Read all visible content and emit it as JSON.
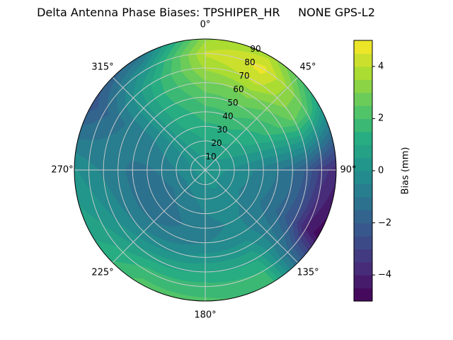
{
  "chart_data": {
    "type": "heatmap",
    "projection": "polar",
    "title": "Delta Antenna Phase Biases: TPSHIPER_HR     NONE GPS-L2",
    "colorbar_label": "Bias (mm)",
    "colormap": "viridis",
    "colormap_stops": [
      "#440154",
      "#472c7a",
      "#3b518b",
      "#2c718e",
      "#21908d",
      "#27ad81",
      "#5cc863",
      "#aadc32",
      "#fde725"
    ],
    "value_range": [
      -5,
      5
    ],
    "band_step": 0.5,
    "angle_convention": "azimuth degrees, 0 at top, increasing clockwise",
    "azimuths": [
      0,
      30,
      60,
      90,
      120,
      150,
      180,
      210,
      240,
      270,
      300,
      330
    ],
    "radii": [
      0,
      10,
      20,
      30,
      40,
      50,
      60,
      70,
      80,
      90
    ],
    "values": [
      [
        0.3,
        0.6,
        1.0,
        1.4,
        1.8,
        2.3,
        2.9,
        3.6,
        4.1,
        3.4
      ],
      [
        0.3,
        0.6,
        1.0,
        1.4,
        1.9,
        2.5,
        3.2,
        4.2,
        4.7,
        3.8
      ],
      [
        0.3,
        0.4,
        0.6,
        0.9,
        1.2,
        1.6,
        2.1,
        2.6,
        2.2,
        0.8
      ],
      [
        0.3,
        0.1,
        -0.1,
        -0.4,
        -0.7,
        -1.0,
        -1.4,
        -2.1,
        -3.2,
        -3.8
      ],
      [
        0.3,
        0.0,
        -0.3,
        -0.6,
        -0.9,
        -1.2,
        -1.7,
        -2.6,
        -4.1,
        -4.8
      ],
      [
        0.3,
        0.1,
        -0.1,
        -0.3,
        -0.4,
        -0.3,
        0.2,
        0.9,
        1.5,
        1.9
      ],
      [
        0.3,
        0.0,
        -0.3,
        -0.5,
        -0.7,
        -0.5,
        0.2,
        1.0,
        1.7,
        2.1
      ],
      [
        0.3,
        -0.1,
        -0.6,
        -0.9,
        -1.1,
        -0.9,
        -0.2,
        0.8,
        1.7,
        2.2
      ],
      [
        0.3,
        -0.2,
        -0.8,
        -1.2,
        -1.3,
        -1.1,
        -0.6,
        0.0,
        0.6,
        0.9
      ],
      [
        0.3,
        -0.1,
        -0.5,
        -0.9,
        -1.1,
        -1.1,
        -0.9,
        -0.6,
        -0.3,
        0.1
      ],
      [
        0.3,
        0.1,
        -0.1,
        -0.3,
        -0.5,
        -0.7,
        -0.9,
        -1.2,
        -1.7,
        -2.3
      ],
      [
        0.3,
        0.4,
        0.6,
        0.9,
        1.1,
        1.3,
        1.4,
        1.2,
        0.3,
        -1.2
      ]
    ],
    "angle_tick_labels": [
      "0°",
      "45°",
      "90°",
      "135°",
      "180°",
      "225°",
      "270°",
      "315°"
    ],
    "radial_tick_labels": [
      "10",
      "20",
      "30",
      "40",
      "50",
      "60",
      "70",
      "80",
      "90"
    ],
    "colorbar_tick_labels": [
      "4",
      "2",
      "0",
      "−2",
      "−4"
    ],
    "colorbar_tick_values": [
      4,
      2,
      0,
      -2,
      -4
    ],
    "grid": true,
    "legend_position": "colorbar-right"
  }
}
